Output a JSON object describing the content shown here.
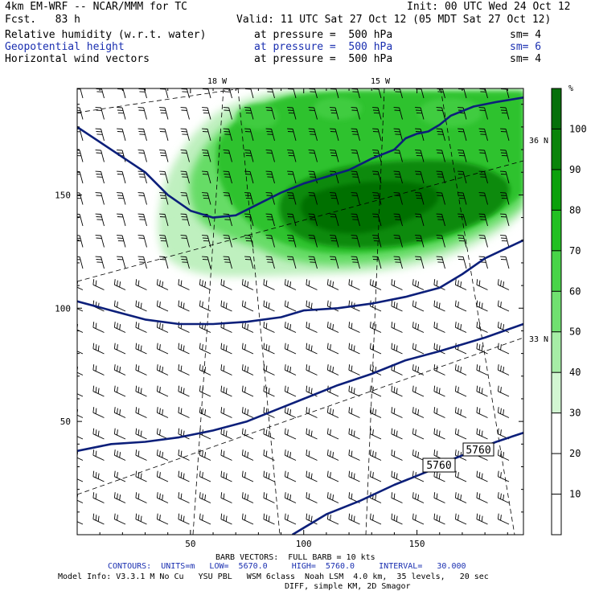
{
  "header": {
    "model_line": "4km EM-WRF -- NCAR/MMM for TC",
    "init_line": "Init: 00 UTC Wed 24 Oct 12",
    "fcst_line": "Fcst.   83 h",
    "valid_line": "Valid: 11 UTC Sat 27 Oct 12 (05 MDT Sat 27 Oct 12)",
    "fields": [
      {
        "name": "Relative humidity (w.r.t. water)",
        "level": "at pressure =  500 hPa",
        "sm": "sm= 4",
        "color": "#000000"
      },
      {
        "name": "Geopotential height",
        "level": "at pressure =  500 hPa",
        "sm": "sm= 6",
        "color": "#1a2fb0"
      },
      {
        "name": "Horizontal wind vectors",
        "level": "at pressure =  500 hPa",
        "sm": "sm= 4",
        "color": "#000000"
      }
    ]
  },
  "chart_data": {
    "type": "contour",
    "x_ticks": [
      50,
      100,
      150
    ],
    "y_ticks": [
      50,
      100,
      150
    ],
    "xlim": [
      0,
      197
    ],
    "ylim": [
      0,
      197
    ],
    "lon_labels": [
      "18 W",
      "15 W"
    ],
    "lat_labels": [
      "36 N",
      "33 N"
    ],
    "geopotential_contours": {
      "units": "m",
      "low": "5670.0",
      "high": "5760.0",
      "interval": "30.000",
      "labels": [
        "5760",
        "5760"
      ],
      "lines": [
        [
          [
            0,
            180
          ],
          [
            15,
            170
          ],
          [
            30,
            160
          ],
          [
            40,
            150
          ],
          [
            50,
            143
          ],
          [
            60,
            140
          ],
          [
            70,
            141
          ],
          [
            80,
            146
          ],
          [
            90,
            151
          ],
          [
            100,
            155
          ],
          [
            110,
            158
          ],
          [
            120,
            161
          ],
          [
            130,
            166
          ],
          [
            140,
            170
          ],
          [
            145,
            175
          ],
          [
            150,
            177
          ],
          [
            155,
            178
          ],
          [
            160,
            181
          ],
          [
            165,
            185
          ],
          [
            175,
            189
          ],
          [
            185,
            191
          ],
          [
            197,
            193
          ]
        ],
        [
          [
            0,
            103
          ],
          [
            15,
            99
          ],
          [
            30,
            95
          ],
          [
            45,
            93
          ],
          [
            60,
            93
          ],
          [
            75,
            94
          ],
          [
            90,
            96
          ],
          [
            100,
            99
          ],
          [
            115,
            100
          ],
          [
            130,
            102
          ],
          [
            145,
            105
          ],
          [
            160,
            109
          ],
          [
            170,
            115
          ],
          [
            180,
            122
          ],
          [
            197,
            130
          ]
        ],
        [
          [
            0,
            37
          ],
          [
            15,
            40
          ],
          [
            30,
            41
          ],
          [
            45,
            43
          ],
          [
            60,
            46
          ],
          [
            75,
            50
          ],
          [
            90,
            56
          ],
          [
            100,
            60
          ],
          [
            115,
            66
          ],
          [
            130,
            71
          ],
          [
            145,
            77
          ],
          [
            160,
            81
          ],
          [
            180,
            87
          ],
          [
            197,
            93
          ]
        ],
        [
          [
            95,
            0
          ],
          [
            110,
            9
          ],
          [
            125,
            15
          ],
          [
            140,
            22
          ],
          [
            155,
            28
          ],
          [
            165,
            33
          ],
          [
            175,
            37
          ],
          [
            185,
            41
          ],
          [
            197,
            45
          ]
        ]
      ]
    },
    "relative_humidity": {
      "units": "%",
      "colorbar_ticks": [
        10,
        20,
        30,
        40,
        50,
        60,
        70,
        80,
        90,
        100
      ],
      "colorbar_range": [
        0,
        110
      ],
      "colors": [
        "#ffffff",
        "#ffffff",
        "#ffffff",
        "#d2f6d2",
        "#a6eda6",
        "#70e070",
        "#48d448",
        "#22c022",
        "#0ca10c",
        "#0a840a",
        "#06700a"
      ]
    },
    "barb_legend": "BARB VECTORS:  FULL BARB = 10 kts"
  },
  "footer": {
    "barb_line": "BARB VECTORS:  FULL BARB = 10 kts",
    "contour_line": "CONTOURS:  UNITS=m   LOW=  5670.0     HIGH=  5760.0     INTERVAL=   30.000",
    "model_info": "Model Info: V3.3.1 M No Cu   YSU PBL   WSM 6class  Noah LSM  4.0 km,  35 levels,   20 sec",
    "diff_line": "DIFF, simple KM, 2D Smagor"
  }
}
